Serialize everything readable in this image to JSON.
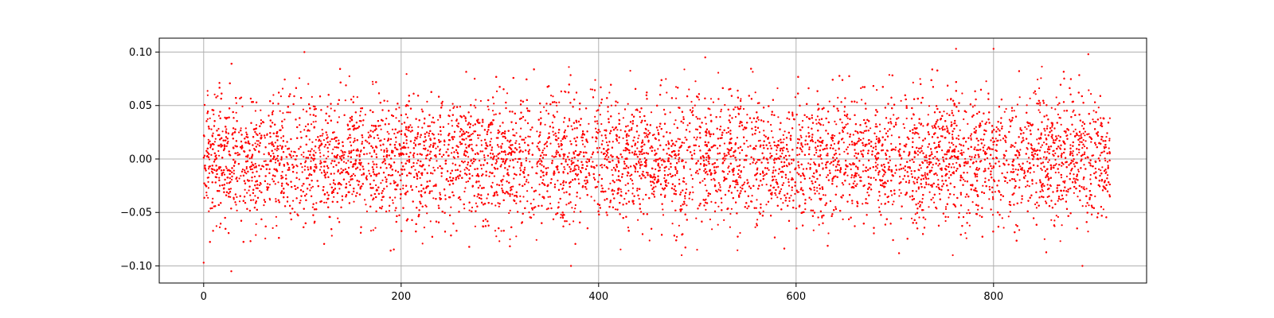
{
  "chart_data": {
    "type": "scatter",
    "title": "",
    "xlabel": "",
    "ylabel": "",
    "xlim": [
      -45,
      955
    ],
    "ylim": [
      -0.116,
      0.113
    ],
    "xticks": [
      0,
      200,
      400,
      600,
      800
    ],
    "xtick_labels": [
      "0",
      "200",
      "400",
      "600",
      "800"
    ],
    "yticks": [
      -0.1,
      -0.05,
      0.0,
      0.05,
      0.1
    ],
    "ytick_labels": [
      "−0.10",
      "−0.05",
      "0.00",
      "0.05",
      "0.10"
    ],
    "grid": true,
    "legend": "none",
    "marker_color": "#ff0000",
    "series": [
      {
        "description": "dense noise band centered at zero over x from 0 to about 918; core |y| < 0.02, tails to about ±0.10",
        "x_range": [
          0,
          918
        ],
        "y_core_range": [
          -0.02,
          0.02
        ],
        "y_spread_range": [
          -0.09,
          0.09
        ],
        "notable_points": [
          {
            "x": 0,
            "y": -0.097
          },
          {
            "x": 28,
            "y": -0.105
          },
          {
            "x": 102,
            "y": 0.1
          },
          {
            "x": 372,
            "y": -0.1
          },
          {
            "x": 508,
            "y": 0.095
          },
          {
            "x": 762,
            "y": 0.103
          },
          {
            "x": 800,
            "y": 0.103
          },
          {
            "x": 890,
            "y": -0.1
          },
          {
            "x": 896,
            "y": 0.098
          }
        ]
      }
    ]
  }
}
